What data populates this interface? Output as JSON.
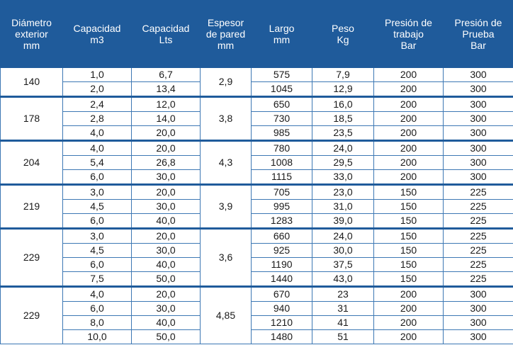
{
  "colors": {
    "header_bg": "#1f5b9b",
    "header_text": "#ffffff",
    "border": "#3d78b4"
  },
  "headers": [
    "Diámetro\nexterior\nmm",
    "Capacidad\nm3",
    "Capacidad\nLts",
    "Espesor\nde  pared\nmm",
    "Largo\nmm",
    "Peso\nKg",
    "Presión de\ntrabajo\nBar",
    "Presión de\nPrueba\nBar"
  ],
  "groups": [
    {
      "diameter": "140",
      "thickness": "2,9",
      "rows": [
        {
          "m3": "1,0",
          "lts": "6,7",
          "largo": "575",
          "peso": "7,9",
          "trabajo": "200",
          "prueba": "300"
        },
        {
          "m3": "2,0",
          "lts": "13,4",
          "largo": "1045",
          "peso": "12,9",
          "trabajo": "200",
          "prueba": "300"
        }
      ]
    },
    {
      "diameter": "178",
      "thickness": "3,8",
      "rows": [
        {
          "m3": "2,4",
          "lts": "12,0",
          "largo": "650",
          "peso": "16,0",
          "trabajo": "200",
          "prueba": "300"
        },
        {
          "m3": "2,8",
          "lts": "14,0",
          "largo": "730",
          "peso": "18,5",
          "trabajo": "200",
          "prueba": "300"
        },
        {
          "m3": "4,0",
          "lts": "20,0",
          "largo": "985",
          "peso": "23,5",
          "trabajo": "200",
          "prueba": "300"
        }
      ]
    },
    {
      "diameter": "204",
      "thickness": "4,3",
      "rows": [
        {
          "m3": "4,0",
          "lts": "20,0",
          "largo": "780",
          "peso": "24,0",
          "trabajo": "200",
          "prueba": "300"
        },
        {
          "m3": "5,4",
          "lts": "26,8",
          "largo": "1008",
          "peso": "29,5",
          "trabajo": "200",
          "prueba": "300"
        },
        {
          "m3": "6,0",
          "lts": "30,0",
          "largo": "1115",
          "peso": "33,0",
          "trabajo": "200",
          "prueba": "300"
        }
      ]
    },
    {
      "diameter": "219",
      "thickness": "3,9",
      "rows": [
        {
          "m3": "3,0",
          "lts": "20,0",
          "largo": "705",
          "peso": "23,0",
          "trabajo": "150",
          "prueba": "225"
        },
        {
          "m3": "4,5",
          "lts": "30,0",
          "largo": "995",
          "peso": "31,0",
          "trabajo": "150",
          "prueba": "225"
        },
        {
          "m3": "6,0",
          "lts": "40,0",
          "largo": "1283",
          "peso": "39,0",
          "trabajo": "150",
          "prueba": "225"
        }
      ]
    },
    {
      "diameter": "229",
      "thickness": "3,6",
      "rows": [
        {
          "m3": "3,0",
          "lts": "20,0",
          "largo": "660",
          "peso": "24,0",
          "trabajo": "150",
          "prueba": "225"
        },
        {
          "m3": "4,5",
          "lts": "30,0",
          "largo": "925",
          "peso": "30,0",
          "trabajo": "150",
          "prueba": "225"
        },
        {
          "m3": "6,0",
          "lts": "40,0",
          "largo": "1190",
          "peso": "37,5",
          "trabajo": "150",
          "prueba": "225"
        },
        {
          "m3": "7,5",
          "lts": "50,0",
          "largo": "1440",
          "peso": "43,0",
          "trabajo": "150",
          "prueba": "225"
        }
      ]
    },
    {
      "diameter": "229",
      "thickness": "4,85",
      "rows": [
        {
          "m3": "4,0",
          "lts": "20,0",
          "largo": "670",
          "peso": "23",
          "trabajo": "200",
          "prueba": "300"
        },
        {
          "m3": "6,0",
          "lts": "30,0",
          "largo": "940",
          "peso": "31",
          "trabajo": "200",
          "prueba": "300"
        },
        {
          "m3": "8,0",
          "lts": "40,0",
          "largo": "1210",
          "peso": "41",
          "trabajo": "200",
          "prueba": "300"
        },
        {
          "m3": "10,0",
          "lts": "50,0",
          "largo": "1480",
          "peso": "51",
          "trabajo": "200",
          "prueba": "300"
        }
      ]
    }
  ]
}
